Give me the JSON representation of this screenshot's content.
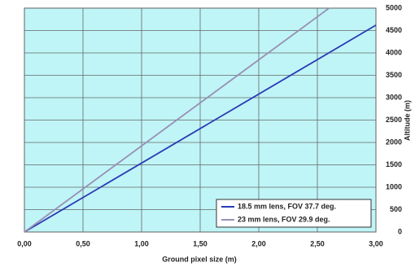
{
  "chart_data": {
    "type": "line",
    "x_label": "Ground pixel size (m)",
    "y_label": "Altitude (m)",
    "xlim": [
      0,
      3
    ],
    "ylim": [
      0,
      5000
    ],
    "xticks": [
      {
        "value": 0,
        "label": "0,00"
      },
      {
        "value": 0.5,
        "label": "0,50"
      },
      {
        "value": 1,
        "label": "1,00"
      },
      {
        "value": 1.5,
        "label": "1,50"
      },
      {
        "value": 2,
        "label": "2,00"
      },
      {
        "value": 2.5,
        "label": "2,50"
      },
      {
        "value": 3,
        "label": "3,00"
      }
    ],
    "yticks": [
      0,
      500,
      1000,
      1500,
      2000,
      2500,
      3000,
      3500,
      4000,
      4500,
      5000
    ],
    "grid": true,
    "legend": "lower right",
    "background": "#bff5f7",
    "series": [
      {
        "name": "18.5 mm lens, FOV 37.7 deg.",
        "color": "#2b3bb5",
        "x": [
          0,
          3
        ],
        "values": [
          0,
          4620
        ]
      },
      {
        "name": "23 mm lens, FOV 29.9 deg.",
        "color": "#9a8fb3",
        "x": [
          0,
          2.6
        ],
        "values": [
          0,
          5000
        ]
      }
    ]
  }
}
